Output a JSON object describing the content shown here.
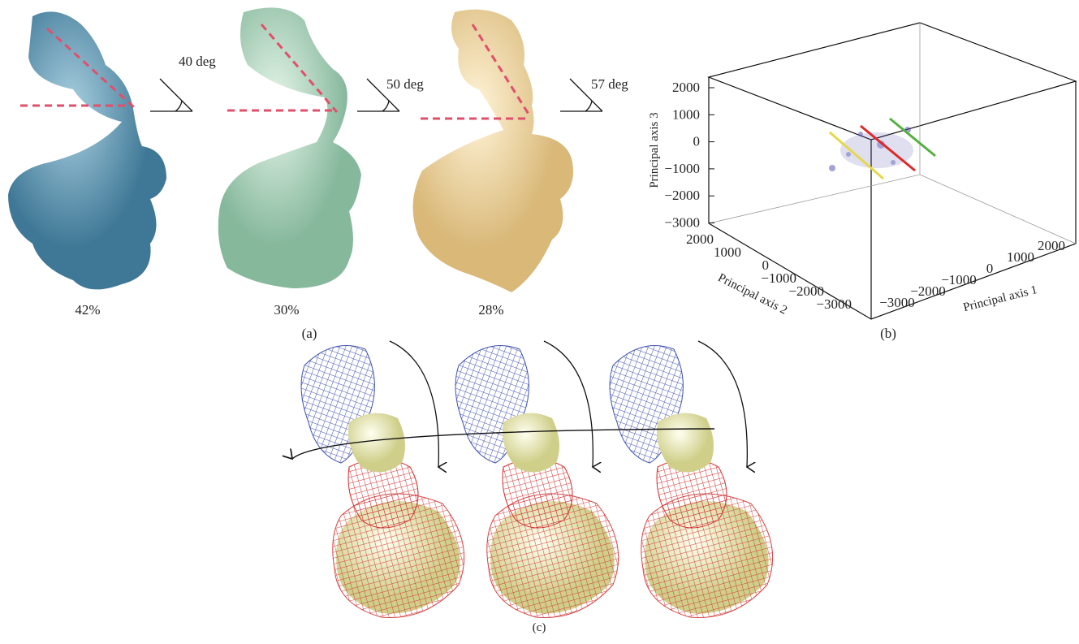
{
  "panel_a": {
    "label": "(a)",
    "models": [
      {
        "angle": "40 deg",
        "fraction": "42%"
      },
      {
        "angle": "50 deg",
        "fraction": "30%"
      },
      {
        "angle": "57 deg",
        "fraction": "28%"
      }
    ]
  },
  "panel_b": {
    "label": "(b)",
    "axis_1": {
      "title": "Principal axis 1",
      "ticks": [
        "−3000",
        "−2000",
        "−1000",
        "0",
        "1000",
        "2000"
      ]
    },
    "axis_2": {
      "title": "Principal axis 2",
      "ticks": [
        "2000",
        "1000",
        "0",
        "−1000",
        "−2000",
        "−3000"
      ]
    },
    "axis_3": {
      "title": "Principal axis 3",
      "ticks": [
        "2000",
        "1000",
        "0",
        "−1000",
        "−2000",
        "−3000"
      ]
    }
  },
  "panel_c": {
    "label": "(c)"
  }
}
